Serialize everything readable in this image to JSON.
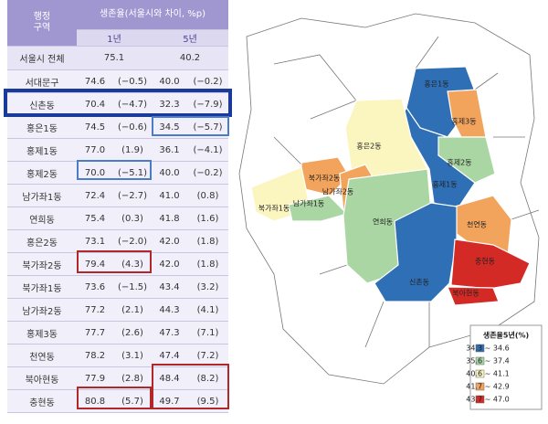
{
  "table": {
    "header": {
      "region": "행정\n구역",
      "survival": "생존율(서울시와 차이, %p)",
      "year1": "1년",
      "year5": "5년"
    },
    "total": {
      "label": "서울시 전체",
      "year1": "75.1",
      "year5": "40.2"
    },
    "rows": [
      [
        "서대문구",
        "74.6",
        "(−0.5)",
        "40.0",
        "(−0.2)"
      ],
      [
        "신촌동",
        "70.4",
        "(−4.7)",
        "32.3",
        "(−7.9)"
      ],
      [
        "홍은1동",
        "74.5",
        "(−0.6)",
        "34.5",
        "(−5.7)"
      ],
      [
        "홍제1동",
        "77.0",
        "(1.9)",
        "36.1",
        "(−4.1)"
      ],
      [
        "홍제2동",
        "70.0",
        "(−5.1)",
        "40.0",
        "(−0.2)"
      ],
      [
        "남가좌1동",
        "72.4",
        "(−2.7)",
        "41.0",
        "(0.8)"
      ],
      [
        "연희동",
        "75.4",
        "(0.3)",
        "41.8",
        "(1.6)"
      ],
      [
        "홍은2동",
        "73.1",
        "(−2.0)",
        "42.0",
        "(1.8)"
      ],
      [
        "북가좌2동",
        "79.4",
        "(4.3)",
        "42.0",
        "(1.8)"
      ],
      [
        "북가좌1동",
        "73.6",
        "(−1.5)",
        "43.4",
        "(3.2)"
      ],
      [
        "남가좌2동",
        "77.2",
        "(2.1)",
        "44.3",
        "(4.1)"
      ],
      [
        "홍제3동",
        "77.7",
        "(2.6)",
        "47.3",
        "(7.1)"
      ],
      [
        "천연동",
        "78.2",
        "(3.1)",
        "47.4",
        "(7.2)"
      ],
      [
        "북아현동",
        "77.9",
        "(2.8)",
        "48.4",
        "(8.2)"
      ],
      [
        "충현동",
        "80.8",
        "(5.7)",
        "49.7",
        "(9.5)"
      ]
    ]
  },
  "map": {
    "regions": [
      {
        "label": "홍은1동",
        "color": "#2e6fb5"
      },
      {
        "label": "홍제3동",
        "color": "#f2a35c"
      },
      {
        "label": "홍제1동",
        "color": "#2e6fb5"
      },
      {
        "label": "홍제2동",
        "color": "#a9d6a2"
      },
      {
        "label": "홍은2동",
        "color": "#fbf5c0"
      },
      {
        "label": "북가좌2동",
        "color": "#f2a35c"
      },
      {
        "label": "남가좌2동",
        "color": "#f2a35c"
      },
      {
        "label": "북가좌1동",
        "color": "#fbf5c0"
      },
      {
        "label": "남가좌1동",
        "color": "#a9d6a2"
      },
      {
        "label": "연희동",
        "color": "#a9d6a2"
      },
      {
        "label": "천연동",
        "color": "#f2a35c"
      },
      {
        "label": "신촌동",
        "color": "#2e6fb5"
      },
      {
        "label": "충현동",
        "color": "#d42a26"
      },
      {
        "label": "북아현동",
        "color": "#d42a26"
      }
    ],
    "legend": {
      "title": "생존율5년(%)",
      "items": [
        {
          "label": "34.3 ~ 34.6",
          "color": "#2e6fb5"
        },
        {
          "label": "35.6 ~ 37.4",
          "color": "#a9d6a2"
        },
        {
          "label": "40.6 ~ 41.1",
          "color": "#fbf5c0"
        },
        {
          "label": "41.7 ~ 42.9",
          "color": "#f2a35c"
        },
        {
          "label": "43.7 ~ 47.0",
          "color": "#d42a26"
        }
      ]
    }
  }
}
